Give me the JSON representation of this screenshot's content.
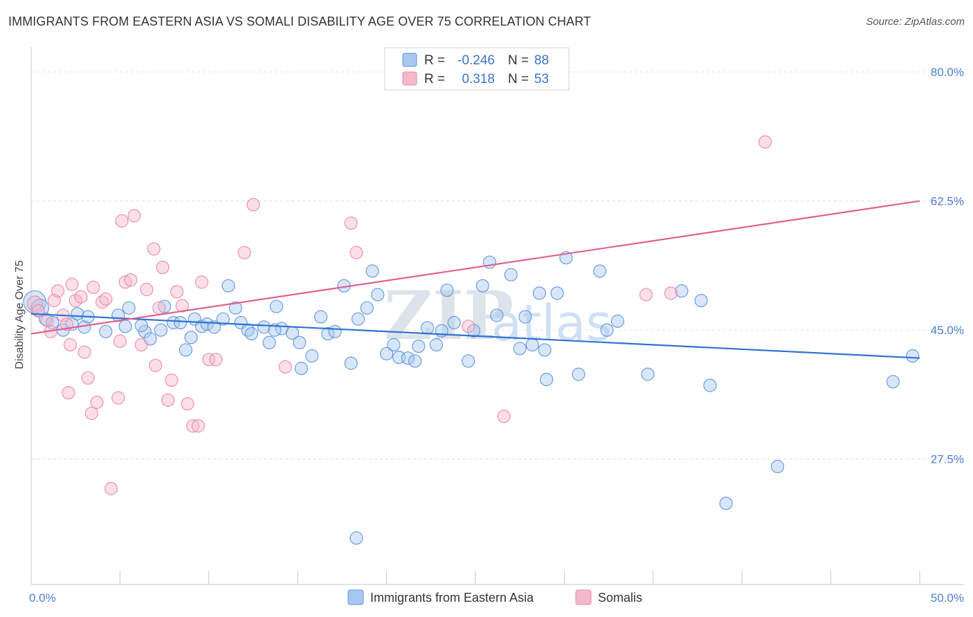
{
  "title": "IMMIGRANTS FROM EASTERN ASIA VS SOMALI DISABILITY AGE OVER 75 CORRELATION CHART",
  "source": "Source: ZipAtlas.com",
  "watermark": {
    "zip": "ZIP",
    "atlas": "atlas"
  },
  "colors": {
    "blue_fill": "#a8c8f0",
    "blue_stroke": "#5b95dd",
    "blue_line": "#2f72d1",
    "pink_fill": "#f5b8cc",
    "pink_stroke": "#e988a8",
    "pink_line": "#e0608d",
    "grid": "#e0e0e0",
    "tick_label": "#4a7fd0"
  },
  "legend_top": {
    "items": [
      {
        "r_label": "R =",
        "r_value": "-0.246",
        "n_label": "N =",
        "n_value": "88"
      },
      {
        "r_label": "R =",
        "r_value": "0.318",
        "n_label": "N =",
        "n_value": "53"
      }
    ]
  },
  "chart_data": {
    "type": "scatter",
    "xlabel": "",
    "ylabel": "Disability Age Over 75",
    "xlim": [
      0,
      50
    ],
    "ylim": [
      10.5,
      83
    ],
    "x_tick_labels": [
      {
        "value": 0,
        "label": "0.0%"
      },
      {
        "value": 50,
        "label": "50.0%"
      }
    ],
    "y_tick_labels": [
      {
        "value": 80,
        "label": "80.0%"
      },
      {
        "value": 62.5,
        "label": "62.5%"
      },
      {
        "value": 45,
        "label": "45.0%"
      },
      {
        "value": 27.5,
        "label": "27.5%"
      }
    ],
    "grid_y": [
      80,
      62.5,
      45,
      27.5
    ],
    "series": [
      {
        "name": "Immigrants from Eastern Asia",
        "color": "#5b95dd",
        "trend": {
          "x": [
            0,
            50
          ],
          "y": [
            47.2,
            41.2
          ]
        },
        "points": [
          [
            0.2,
            48.8,
            1.8
          ],
          [
            0.5,
            48.0,
            1.4
          ],
          [
            0.8,
            46.5,
            1
          ],
          [
            1.2,
            46.0,
            1
          ],
          [
            1.8,
            45.0,
            1
          ],
          [
            2.6,
            47.2,
            1
          ],
          [
            3.0,
            45.4,
            1
          ],
          [
            3.2,
            46.8,
            1
          ],
          [
            4.2,
            44.8,
            1
          ],
          [
            4.9,
            47.0,
            1
          ],
          [
            5.3,
            45.5,
            1
          ],
          [
            5.5,
            48.0,
            1
          ],
          [
            6.4,
            44.8,
            1
          ],
          [
            6.2,
            45.6,
            1
          ],
          [
            6.7,
            43.8,
            1
          ],
          [
            7.3,
            45.0,
            1
          ],
          [
            7.5,
            48.2,
            1
          ],
          [
            8.0,
            46.0,
            1
          ],
          [
            8.4,
            46.0,
            1
          ],
          [
            8.7,
            42.3,
            1
          ],
          [
            9.2,
            46.5,
            1
          ],
          [
            9.6,
            45.5,
            1
          ],
          [
            9.9,
            45.8,
            1
          ],
          [
            10.3,
            45.4,
            1
          ],
          [
            10.8,
            46.5,
            1
          ],
          [
            11.1,
            51.0,
            1
          ],
          [
            11.5,
            48.0,
            1
          ],
          [
            11.8,
            46.0,
            1
          ],
          [
            12.2,
            45.0,
            1
          ],
          [
            12.4,
            44.5,
            1
          ],
          [
            13.1,
            45.4,
            1
          ],
          [
            13.4,
            43.3,
            1
          ],
          [
            13.8,
            48.2,
            1
          ],
          [
            14.1,
            45.2,
            1
          ],
          [
            14.7,
            44.6,
            1
          ],
          [
            15.1,
            43.3,
            1
          ],
          [
            15.2,
            39.8,
            1
          ],
          [
            15.8,
            41.5,
            1
          ],
          [
            16.3,
            46.8,
            1
          ],
          [
            16.7,
            44.5,
            1
          ],
          [
            17.1,
            44.8,
            1
          ],
          [
            17.6,
            51.0,
            1
          ],
          [
            18.0,
            40.5,
            1
          ],
          [
            18.4,
            46.5,
            1
          ],
          [
            18.9,
            48.0,
            1
          ],
          [
            19.2,
            53.0,
            1
          ],
          [
            19.5,
            49.8,
            1
          ],
          [
            20.0,
            41.8,
            1
          ],
          [
            20.4,
            43.0,
            1
          ],
          [
            20.7,
            41.3,
            1
          ],
          [
            21.2,
            41.2,
            1
          ],
          [
            21.6,
            40.8,
            1
          ],
          [
            21.8,
            42.8,
            1
          ],
          [
            22.3,
            45.3,
            1
          ],
          [
            22.8,
            43.0,
            1
          ],
          [
            23.1,
            44.9,
            1
          ],
          [
            23.4,
            50.4,
            1
          ],
          [
            23.8,
            46.0,
            1
          ],
          [
            24.6,
            40.8,
            1
          ],
          [
            24.9,
            44.9,
            1
          ],
          [
            25.4,
            51.0,
            1
          ],
          [
            25.8,
            54.2,
            1
          ],
          [
            26.2,
            47.0,
            1
          ],
          [
            27.0,
            52.5,
            1
          ],
          [
            27.5,
            42.5,
            1
          ],
          [
            27.8,
            46.8,
            1
          ],
          [
            28.2,
            43.0,
            1
          ],
          [
            28.6,
            50.0,
            1
          ],
          [
            28.9,
            42.3,
            1
          ],
          [
            29.0,
            38.3,
            1
          ],
          [
            29.6,
            50.0,
            1
          ],
          [
            30.1,
            54.8,
            1
          ],
          [
            30.8,
            39.0,
            1
          ],
          [
            32.0,
            53.0,
            1
          ],
          [
            32.4,
            45.0,
            1
          ],
          [
            33.0,
            46.2,
            1
          ],
          [
            34.7,
            39.0,
            1
          ],
          [
            36.6,
            50.3,
            1
          ],
          [
            37.7,
            49.0,
            1
          ],
          [
            38.2,
            37.5,
            1
          ],
          [
            39.1,
            21.5,
            1
          ],
          [
            42.0,
            26.5,
            1
          ],
          [
            48.5,
            38.0,
            1
          ],
          [
            49.6,
            41.5,
            1
          ],
          [
            18.3,
            16.8,
            1
          ],
          [
            13.7,
            45.0,
            1
          ],
          [
            9.0,
            44.0,
            1
          ],
          [
            2.3,
            45.8,
            1
          ]
        ]
      },
      {
        "name": "Somalis",
        "color": "#e988a8",
        "trend": {
          "x": [
            0,
            50
          ],
          "y": [
            44.5,
            62.5
          ]
        },
        "points": [
          [
            0.2,
            48.6,
            1.2
          ],
          [
            0.4,
            47.6,
            1
          ],
          [
            0.9,
            46.3,
            1
          ],
          [
            1.1,
            44.8,
            1
          ],
          [
            1.3,
            49.0,
            1
          ],
          [
            1.5,
            50.3,
            1
          ],
          [
            1.8,
            47.0,
            1
          ],
          [
            2.0,
            45.8,
            1
          ],
          [
            2.2,
            43.0,
            1
          ],
          [
            2.3,
            51.2,
            1
          ],
          [
            2.5,
            49.0,
            1
          ],
          [
            2.8,
            49.5,
            1
          ],
          [
            3.0,
            42.0,
            1
          ],
          [
            3.2,
            38.5,
            1
          ],
          [
            3.5,
            50.8,
            1
          ],
          [
            3.7,
            35.2,
            1
          ],
          [
            4.0,
            48.8,
            1
          ],
          [
            4.2,
            49.2,
            1
          ],
          [
            4.5,
            23.5,
            1
          ],
          [
            4.9,
            35.8,
            1
          ],
          [
            5.0,
            43.5,
            1
          ],
          [
            5.1,
            59.8,
            1
          ],
          [
            5.3,
            51.5,
            1
          ],
          [
            5.6,
            51.8,
            1
          ],
          [
            5.8,
            60.5,
            1
          ],
          [
            6.2,
            43.0,
            1
          ],
          [
            6.5,
            50.5,
            1
          ],
          [
            7.0,
            40.2,
            1
          ],
          [
            7.2,
            48.0,
            1
          ],
          [
            7.4,
            53.5,
            1
          ],
          [
            7.7,
            35.5,
            1
          ],
          [
            7.9,
            38.2,
            1
          ],
          [
            8.2,
            50.2,
            1
          ],
          [
            8.5,
            48.3,
            1
          ],
          [
            8.8,
            35.0,
            1
          ],
          [
            9.1,
            32.0,
            1
          ],
          [
            9.4,
            32.0,
            1
          ],
          [
            9.6,
            51.5,
            1
          ],
          [
            10.0,
            41.0,
            1
          ],
          [
            10.4,
            41.0,
            1
          ],
          [
            12.0,
            55.5,
            1
          ],
          [
            12.5,
            62.0,
            1
          ],
          [
            14.3,
            40.0,
            1
          ],
          [
            18.0,
            59.5,
            1
          ],
          [
            18.3,
            55.5,
            1
          ],
          [
            24.6,
            45.5,
            1
          ],
          [
            26.6,
            33.3,
            1
          ],
          [
            34.6,
            49.8,
            1
          ],
          [
            36.0,
            50.0,
            1
          ],
          [
            41.3,
            70.5,
            1
          ],
          [
            2.1,
            36.5,
            1
          ],
          [
            6.9,
            56.0,
            1
          ],
          [
            3.4,
            33.7,
            1
          ]
        ]
      }
    ],
    "legend_bottom": [
      "Immigrants from Eastern Asia",
      "Somalis"
    ]
  }
}
